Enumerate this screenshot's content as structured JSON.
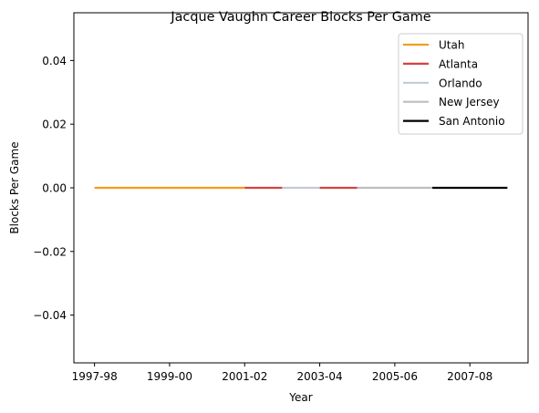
{
  "chart_data": {
    "type": "line",
    "title": "Jacque Vaughn Career Blocks Per Game",
    "xlabel": "Year",
    "ylabel": "Blocks Per Game",
    "x_tick_labels": [
      "1997-98",
      "1999-00",
      "2001-02",
      "2003-04",
      "2005-06",
      "2007-08"
    ],
    "x_tick_values": [
      0,
      2,
      4,
      6,
      8,
      10
    ],
    "xlim": [
      -0.55,
      11.55
    ],
    "ylim": [
      -0.055,
      0.055
    ],
    "y_ticks": [
      0.04,
      0.02,
      0.0,
      -0.02,
      -0.04
    ],
    "y_tick_labels": [
      "0.04",
      "0.02",
      "0.00",
      "−0.02",
      "−0.04"
    ],
    "grid": false,
    "legend_position": "top-right",
    "series": [
      {
        "name": "Utah",
        "color": "#f39c1f",
        "segments": [
          {
            "x": [
              0,
              4
            ],
            "y": [
              0,
              0
            ]
          }
        ]
      },
      {
        "name": "Atlanta",
        "color": "#d94040",
        "segments": [
          {
            "x": [
              4,
              5
            ],
            "y": [
              0,
              0
            ]
          },
          {
            "x": [
              6,
              7
            ],
            "y": [
              0,
              0
            ]
          }
        ]
      },
      {
        "name": "Orlando",
        "color": "#c3cad2",
        "segments": [
          {
            "x": [
              5,
              6
            ],
            "y": [
              0,
              0
            ]
          }
        ]
      },
      {
        "name": "New Jersey",
        "color": "#bdbdbd",
        "segments": [
          {
            "x": [
              7,
              9
            ],
            "y": [
              0,
              0
            ]
          }
        ]
      },
      {
        "name": "San Antonio",
        "color": "#000000",
        "segments": [
          {
            "x": [
              9,
              11
            ],
            "y": [
              0,
              0
            ]
          }
        ]
      }
    ]
  }
}
